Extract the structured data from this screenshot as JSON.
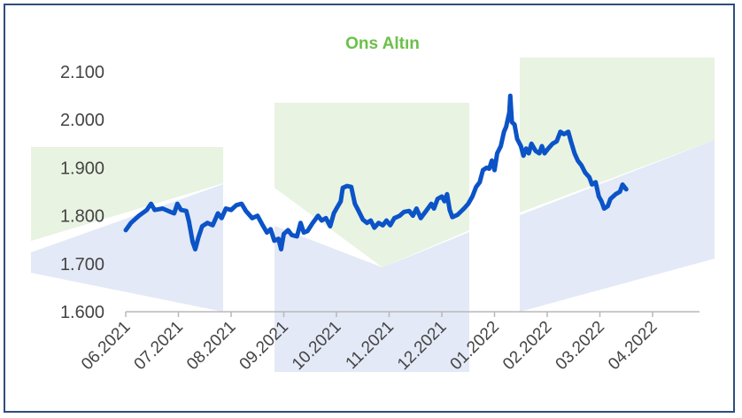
{
  "colors": {
    "title": "#6cc04a",
    "line": "#0b53c7",
    "axis": "#b8b8b8",
    "frame": "#2f4d7e",
    "watermark_green": "#e8f3e2",
    "watermark_blue": "#e3e9f6"
  },
  "chart_data": {
    "type": "line",
    "title": "Ons Altın",
    "xlabel": "",
    "ylabel": "",
    "ylim": [
      1600,
      2100
    ],
    "y_ticks": [
      1600,
      1700,
      1800,
      1900,
      2000,
      2100
    ],
    "y_tick_labels": [
      "1.600",
      "1.700",
      "1.800",
      "1.900",
      "2.000",
      "2.100"
    ],
    "x_tick_labels": [
      "06.2021",
      "07.2021",
      "08.2021",
      "09.2021",
      "10.2021",
      "11.2021",
      "12.2021",
      "01.2022",
      "02.2022",
      "03.2022",
      "04.2022"
    ],
    "grid": false,
    "legend": "none",
    "series": [
      {
        "values": [
          [
            0.0,
            1770
          ],
          [
            0.1,
            1785
          ],
          [
            0.25,
            1800
          ],
          [
            0.4,
            1812
          ],
          [
            0.48,
            1825
          ],
          [
            0.55,
            1812
          ],
          [
            0.7,
            1815
          ],
          [
            0.85,
            1808
          ],
          [
            0.92,
            1805
          ],
          [
            0.98,
            1825
          ],
          [
            1.05,
            1812
          ],
          [
            1.15,
            1810
          ],
          [
            1.2,
            1788
          ],
          [
            1.27,
            1745
          ],
          [
            1.32,
            1730
          ],
          [
            1.38,
            1755
          ],
          [
            1.45,
            1778
          ],
          [
            1.55,
            1785
          ],
          [
            1.65,
            1780
          ],
          [
            1.75,
            1805
          ],
          [
            1.82,
            1795
          ],
          [
            1.9,
            1815
          ],
          [
            2.0,
            1812
          ],
          [
            2.1,
            1822
          ],
          [
            2.2,
            1825
          ],
          [
            2.28,
            1810
          ],
          [
            2.4,
            1795
          ],
          [
            2.5,
            1800
          ],
          [
            2.6,
            1780
          ],
          [
            2.68,
            1765
          ],
          [
            2.75,
            1772
          ],
          [
            2.82,
            1748
          ],
          [
            2.9,
            1752
          ],
          [
            2.95,
            1730
          ],
          [
            3.0,
            1762
          ],
          [
            3.08,
            1770
          ],
          [
            3.15,
            1760
          ],
          [
            3.25,
            1757
          ],
          [
            3.32,
            1785
          ],
          [
            3.38,
            1765
          ],
          [
            3.45,
            1768
          ],
          [
            3.55,
            1785
          ],
          [
            3.65,
            1800
          ],
          [
            3.72,
            1790
          ],
          [
            3.8,
            1795
          ],
          [
            3.88,
            1778
          ],
          [
            3.95,
            1805
          ],
          [
            4.0,
            1815
          ],
          [
            4.08,
            1830
          ],
          [
            4.12,
            1858
          ],
          [
            4.2,
            1862
          ],
          [
            4.28,
            1860
          ],
          [
            4.35,
            1825
          ],
          [
            4.42,
            1810
          ],
          [
            4.5,
            1792
          ],
          [
            4.58,
            1785
          ],
          [
            4.65,
            1790
          ],
          [
            4.72,
            1775
          ],
          [
            4.8,
            1785
          ],
          [
            4.88,
            1780
          ],
          [
            4.95,
            1790
          ],
          [
            5.02,
            1780
          ],
          [
            5.1,
            1795
          ],
          [
            5.2,
            1800
          ],
          [
            5.28,
            1808
          ],
          [
            5.38,
            1810
          ],
          [
            5.45,
            1800
          ],
          [
            5.52,
            1815
          ],
          [
            5.6,
            1795
          ],
          [
            5.7,
            1810
          ],
          [
            5.8,
            1825
          ],
          [
            5.85,
            1815
          ],
          [
            5.92,
            1835
          ],
          [
            6.0,
            1840
          ],
          [
            6.05,
            1830
          ],
          [
            6.1,
            1845
          ],
          [
            6.15,
            1812
          ],
          [
            6.2,
            1797
          ],
          [
            6.3,
            1802
          ],
          [
            6.42,
            1815
          ],
          [
            6.5,
            1825
          ],
          [
            6.58,
            1840
          ],
          [
            6.65,
            1860
          ],
          [
            6.72,
            1870
          ],
          [
            6.78,
            1895
          ],
          [
            6.85,
            1900
          ],
          [
            6.9,
            1898
          ],
          [
            6.95,
            1915
          ],
          [
            7.0,
            1895
          ],
          [
            7.05,
            1930
          ],
          [
            7.12,
            1945
          ],
          [
            7.18,
            1975
          ],
          [
            7.22,
            1985
          ],
          [
            7.28,
            2015
          ],
          [
            7.3,
            2050
          ],
          [
            7.33,
            1995
          ],
          [
            7.38,
            1990
          ],
          [
            7.43,
            1960
          ],
          [
            7.5,
            1945
          ],
          [
            7.55,
            1925
          ],
          [
            7.6,
            1940
          ],
          [
            7.65,
            1930
          ],
          [
            7.7,
            1950
          ],
          [
            7.78,
            1935
          ],
          [
            7.85,
            1930
          ],
          [
            7.9,
            1945
          ],
          [
            7.95,
            1930
          ],
          [
            8.02,
            1940
          ],
          [
            8.1,
            1950
          ],
          [
            8.18,
            1955
          ],
          [
            8.25,
            1975
          ],
          [
            8.32,
            1970
          ],
          [
            8.4,
            1975
          ],
          [
            8.45,
            1955
          ],
          [
            8.52,
            1930
          ],
          [
            8.58,
            1915
          ],
          [
            8.65,
            1905
          ],
          [
            8.72,
            1890
          ],
          [
            8.8,
            1880
          ],
          [
            8.85,
            1865
          ],
          [
            8.92,
            1870
          ],
          [
            8.98,
            1840
          ],
          [
            9.03,
            1830
          ],
          [
            9.08,
            1815
          ],
          [
            9.15,
            1820
          ],
          [
            9.2,
            1835
          ],
          [
            9.3,
            1845
          ],
          [
            9.38,
            1850
          ],
          [
            9.43,
            1865
          ],
          [
            9.5,
            1855
          ]
        ]
      }
    ]
  }
}
